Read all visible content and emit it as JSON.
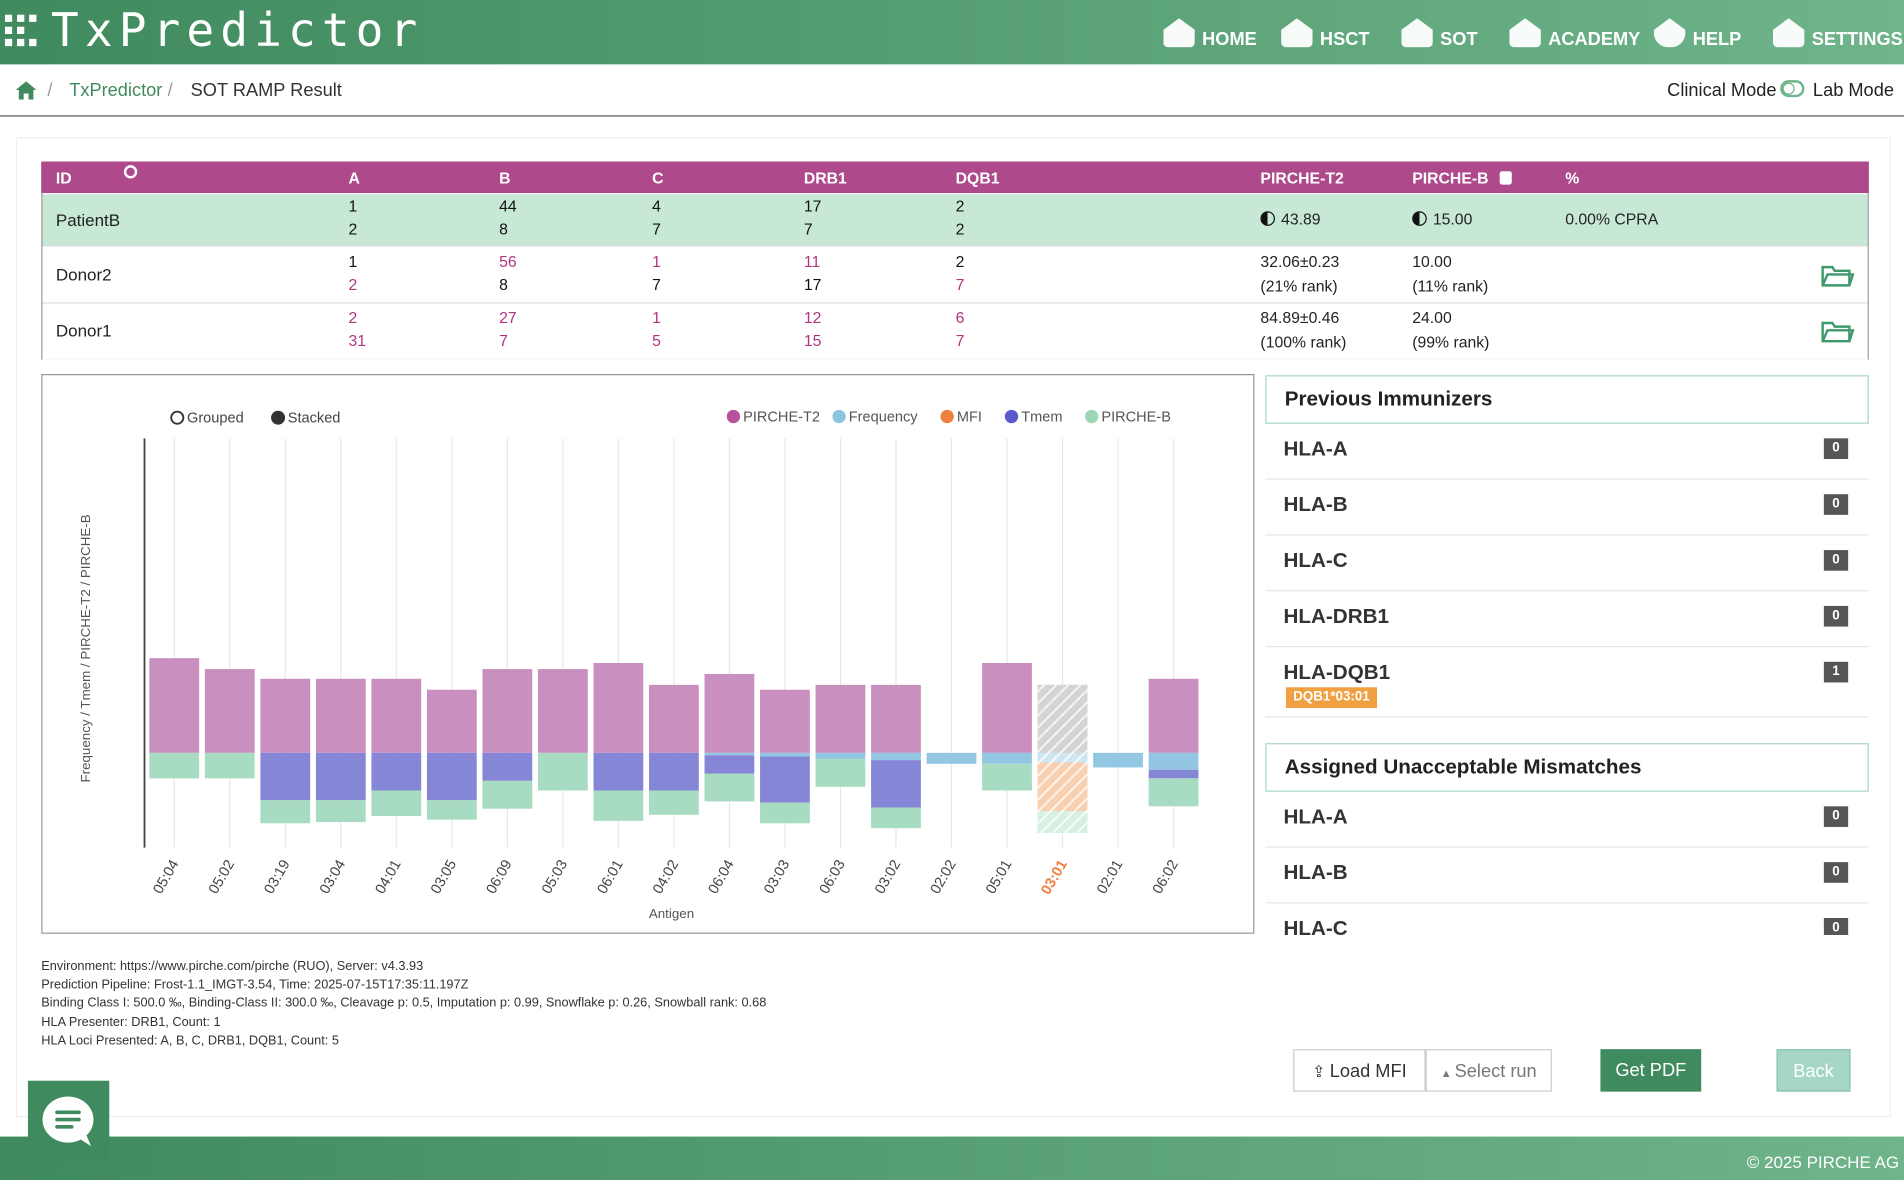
{
  "header": {
    "brand": "TxPredictor",
    "nav": [
      "HOME",
      "HSCT",
      "SOT",
      "ACADEMY",
      "HELP",
      "SETTINGS"
    ]
  },
  "breadcrumb": {
    "items": [
      "TxPredictor",
      "SOT RAMP Result"
    ],
    "modes": [
      "Clinical Mode",
      "Lab Mode"
    ]
  },
  "table": {
    "headers": [
      "ID",
      "A",
      "B",
      "C",
      "DRB1",
      "DQB1",
      "PIRCHE-T2",
      "PIRCHE-B",
      "%"
    ],
    "rows": [
      {
        "id": "PatientB",
        "alleles": [
          [
            {
              "text": "1",
              "mismatch": false
            },
            {
              "text": "2",
              "mismatch": false
            }
          ],
          [
            {
              "text": "44",
              "mismatch": false
            },
            {
              "text": "8",
              "mismatch": false
            }
          ],
          [
            {
              "text": "4",
              "mismatch": false
            },
            {
              "text": "7",
              "mismatch": false
            }
          ],
          [
            {
              "text": "17",
              "mismatch": false
            },
            {
              "text": "7",
              "mismatch": false
            }
          ],
          [
            {
              "text": "2",
              "mismatch": false
            },
            {
              "text": "2",
              "mismatch": false
            }
          ]
        ],
        "pirche_t2": [
          "43.89"
        ],
        "pirche_b": [
          "15.00"
        ],
        "percent": "0.00% CPRA"
      },
      {
        "id": "Donor2",
        "alleles": [
          [
            {
              "text": "1",
              "mismatch": false
            },
            {
              "text": "2",
              "mismatch": true
            }
          ],
          [
            {
              "text": "56",
              "mismatch": true
            },
            {
              "text": "8",
              "mismatch": false
            }
          ],
          [
            {
              "text": "1",
              "mismatch": true
            },
            {
              "text": "7",
              "mismatch": false
            }
          ],
          [
            {
              "text": "11",
              "mismatch": true
            },
            {
              "text": "17",
              "mismatch": false
            }
          ],
          [
            {
              "text": "2",
              "mismatch": false
            },
            {
              "text": "7",
              "mismatch": true
            }
          ]
        ],
        "pirche_t2": [
          "32.06±0.23",
          "(21% rank)"
        ],
        "pirche_b": [
          "10.00",
          "(11% rank)"
        ]
      },
      {
        "id": "Donor1",
        "alleles": [
          [
            {
              "text": "2",
              "mismatch": true
            },
            {
              "text": "31",
              "mismatch": true
            }
          ],
          [
            {
              "text": "27",
              "mismatch": true
            },
            {
              "text": "7",
              "mismatch": true
            }
          ],
          [
            {
              "text": "1",
              "mismatch": true
            },
            {
              "text": "5",
              "mismatch": true
            }
          ],
          [
            {
              "text": "12",
              "mismatch": true
            },
            {
              "text": "15",
              "mismatch": true
            }
          ],
          [
            {
              "text": "6",
              "mismatch": true
            },
            {
              "text": "7",
              "mismatch": true
            }
          ]
        ],
        "pirche_t2": [
          "84.89±0.46",
          "(100% rank)"
        ],
        "pirche_b": [
          "24.00",
          "(99% rank)"
        ]
      }
    ]
  },
  "chart_data": {
    "type": "bar",
    "stacked": true,
    "modes": [
      "Grouped",
      "Stacked"
    ],
    "selected_mode": "Stacked",
    "y_label": "Frequency / Tmem / PIRCHE-T2 / PIRCHE-B",
    "x_label": "Antigen",
    "highlight": "03:01",
    "categories": [
      "05:04",
      "05:02",
      "03:19",
      "03:04",
      "04:01",
      "03:05",
      "06:09",
      "05:03",
      "06:01",
      "04:02",
      "06:04",
      "03:03",
      "06:03",
      "03:02",
      "02:02",
      "05:01",
      "03:01",
      "02:01",
      "06:02"
    ],
    "series": [
      {
        "name": "PIRCHE-T2",
        "color": "#c98fbf",
        "legend_color": "#b8529f",
        "values": [
          78,
          69,
          61,
          61,
          61,
          52,
          69,
          69,
          74,
          56,
          65,
          52,
          56,
          56,
          null,
          74,
          56,
          null,
          61
        ]
      },
      {
        "name": "Frequency",
        "color": "#92c6e2",
        "legend_color": "#8cc4dd",
        "values": [
          null,
          null,
          null,
          null,
          null,
          null,
          null,
          null,
          null,
          null,
          2,
          3,
          5,
          6,
          9,
          9,
          8,
          12,
          14
        ]
      },
      {
        "name": "MFI",
        "color": "#f0974f",
        "legend_color": "#ee8040",
        "values": [
          null,
          null,
          null,
          null,
          null,
          null,
          null,
          null,
          null,
          null,
          null,
          null,
          null,
          null,
          null,
          null,
          40,
          null,
          null
        ]
      },
      {
        "name": "Tmem",
        "color": "#8686d6",
        "legend_color": "#5a5acc",
        "values": [
          null,
          null,
          39,
          39,
          31,
          39,
          23,
          null,
          31,
          31,
          15,
          38,
          null,
          39,
          null,
          null,
          null,
          null,
          7
        ]
      },
      {
        "name": "PIRCHE-B",
        "color": "#a8dcc2",
        "legend_color": "#9fd6b6",
        "values": [
          21,
          21,
          19,
          18,
          21,
          16,
          23,
          31,
          25,
          20,
          23,
          17,
          23,
          17,
          null,
          22,
          18,
          null,
          23
        ]
      }
    ]
  },
  "panels": [
    {
      "title": "Previous Immunizers",
      "items": [
        {
          "locus": "HLA-A",
          "count": 0
        },
        {
          "locus": "HLA-B",
          "count": 0
        },
        {
          "locus": "HLA-C",
          "count": 0
        },
        {
          "locus": "HLA-DRB1",
          "count": 0
        },
        {
          "locus": "HLA-DQB1",
          "count": 1,
          "tag": "DQB1*03:01"
        }
      ]
    },
    {
      "title": "Assigned Unacceptable Mismatches",
      "items": [
        {
          "locus": "HLA-A",
          "count": 0
        },
        {
          "locus": "HLA-B",
          "count": 0
        },
        {
          "locus": "HLA-C",
          "count": 0
        }
      ]
    }
  ],
  "info": [
    "Environment: https://www.pirche.com/pirche (RUO), Server: v4.3.93",
    "Prediction Pipeline: Frost-1.1_IMGT-3.54, Time: 2025-07-15T17:35:11.197Z",
    "Binding Class I: 500.0 ‰, Binding-Class II: 300.0 ‰, Cleavage p: 0.5, Imputation p: 0.99, Snowflake p: 0.26, Snowball rank: 0.68",
    "HLA Presenter: DRB1, Count: 1",
    "HLA Loci Presented: A, B, C, DRB1, DQB1, Count: 5"
  ],
  "buttons": [
    "Load MFI",
    "Select run",
    "Get PDF",
    "Back"
  ],
  "footer": "© 2025 PIRCHE AG"
}
